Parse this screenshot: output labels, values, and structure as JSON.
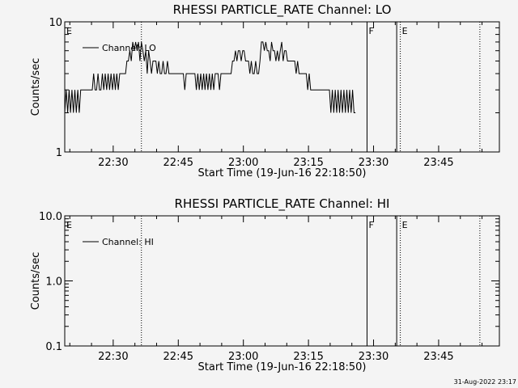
{
  "plot_date": "31-Aug-2022 23:17",
  "chart_data": [
    {
      "type": "line",
      "title": "RHESSI PARTICLE_RATE Channel: LO",
      "xlabel": "Start Time (19-Jun-16 22:18:50)",
      "ylabel": "Counts/sec",
      "yscale": "log",
      "ylim": [
        1,
        10
      ],
      "ytick_labels": [
        "1",
        "10"
      ],
      "xlim": [
        "22:18:50",
        "23:59:00"
      ],
      "xtick_labels": [
        "22:30",
        "22:45",
        "23:00",
        "23:15",
        "23:30",
        "23:45"
      ],
      "legend_label": "Channel: LO",
      "legend_position": "top-left",
      "markers": [
        {
          "label": "E",
          "time": "22:18:50",
          "style": "none"
        },
        {
          "label": "",
          "time": "22:36:30",
          "style": "dotted"
        },
        {
          "label": "F",
          "time": "23:28:30",
          "style": "solid"
        },
        {
          "label": "",
          "time": "23:35:20",
          "style": "solid"
        },
        {
          "label": "E",
          "time": "23:36:10",
          "style": "dotted"
        },
        {
          "label": "",
          "time": "23:54:30",
          "style": "dotted"
        }
      ],
      "series": [
        {
          "name": "Channel: LO",
          "x_start": "22:18:50",
          "x_step_seconds": 20,
          "values": [
            2,
            3,
            2,
            3,
            2,
            3,
            2,
            3,
            2,
            3,
            2,
            3,
            3,
            3,
            3,
            3,
            3,
            3,
            3,
            3,
            4,
            3,
            3,
            4,
            3,
            3,
            4,
            3,
            4,
            3,
            4,
            3,
            4,
            3,
            4,
            3,
            4,
            3,
            4,
            4,
            4,
            4,
            4,
            5,
            5,
            6,
            5,
            7,
            6,
            7,
            6,
            7,
            5,
            7,
            6,
            5,
            6,
            4,
            6,
            5,
            4,
            5,
            5,
            5,
            4,
            5,
            4,
            4,
            5,
            4,
            4,
            5,
            4,
            4,
            4,
            4,
            4,
            4,
            4,
            4,
            4,
            4,
            4,
            3,
            4,
            4,
            4,
            4,
            4,
            4,
            4,
            3,
            4,
            3,
            4,
            3,
            4,
            3,
            4,
            3,
            4,
            3,
            4,
            3,
            4,
            4,
            4,
            3,
            4,
            4,
            4,
            4,
            4,
            4,
            4,
            4,
            5,
            5,
            6,
            5,
            6,
            6,
            5,
            6,
            6,
            5,
            5,
            5,
            4,
            5,
            4,
            4,
            5,
            4,
            4,
            5,
            7,
            7,
            6,
            7,
            6,
            6,
            5,
            7,
            6,
            6,
            5,
            6,
            5,
            6,
            7,
            5,
            6,
            6,
            5,
            5,
            5,
            5,
            5,
            5,
            4,
            5,
            4,
            4,
            4,
            4,
            4,
            4,
            3,
            4,
            3,
            3,
            3,
            3,
            3,
            3,
            3,
            3,
            3,
            3,
            3,
            3,
            3,
            3,
            2,
            3,
            2,
            3,
            2,
            3,
            2,
            3,
            2,
            3,
            2,
            3,
            2,
            3,
            2,
            3,
            2,
            2
          ]
        }
      ]
    },
    {
      "type": "line",
      "title": "RHESSI PARTICLE_RATE Channel: HI",
      "xlabel": "Start Time (19-Jun-16 22:18:50)",
      "ylabel": "Counts/sec",
      "yscale": "log",
      "ylim": [
        0.1,
        10
      ],
      "ytick_labels": [
        "0.1",
        "1.0",
        "10.0"
      ],
      "xlim": [
        "22:18:50",
        "23:59:00"
      ],
      "xtick_labels": [
        "22:30",
        "22:45",
        "23:00",
        "23:15",
        "23:30",
        "23:45"
      ],
      "legend_label": "Channel: HI",
      "legend_position": "top-left",
      "markers": [
        {
          "label": "E",
          "time": "22:18:50",
          "style": "none"
        },
        {
          "label": "",
          "time": "22:36:30",
          "style": "dotted"
        },
        {
          "label": "F",
          "time": "23:28:30",
          "style": "solid"
        },
        {
          "label": "",
          "time": "23:35:20",
          "style": "solid"
        },
        {
          "label": "E",
          "time": "23:36:10",
          "style": "dotted"
        },
        {
          "label": "",
          "time": "23:54:30",
          "style": "dotted"
        }
      ],
      "series": []
    }
  ]
}
